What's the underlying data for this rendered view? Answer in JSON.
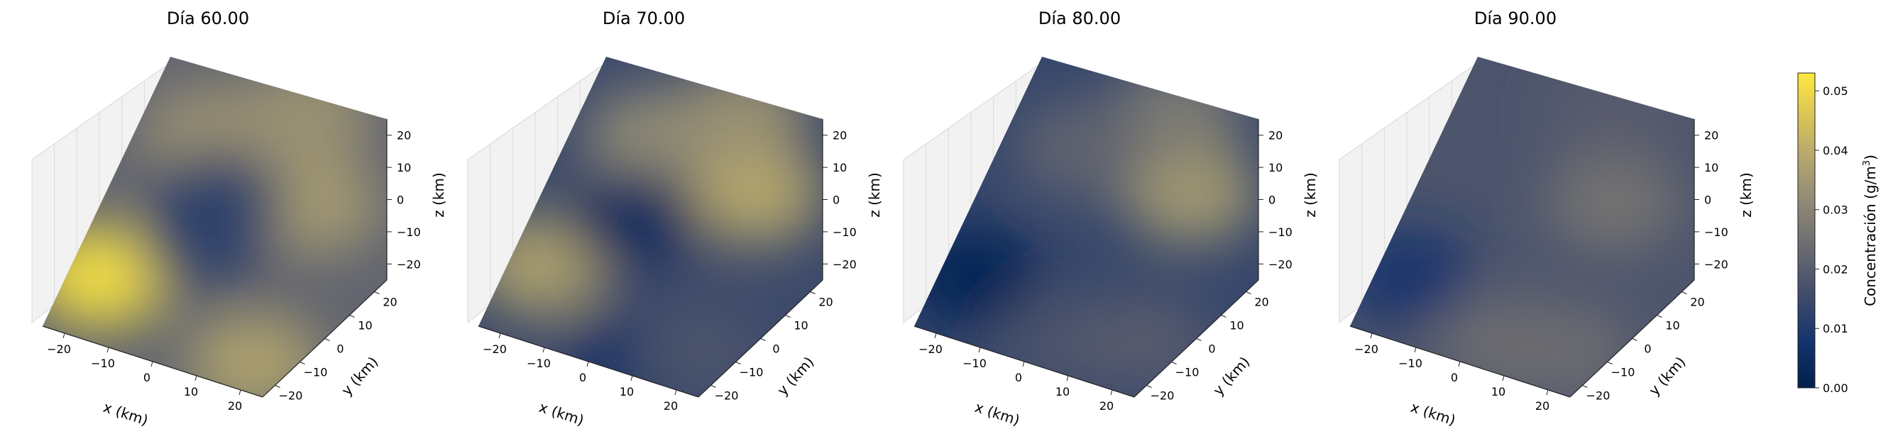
{
  "chart_data": {
    "type": "heatmap",
    "chart_kind": "3d-volume-scatter",
    "colormap": "cividis",
    "panels": [
      {
        "title": "Día 60.00",
        "xlabel": "x (km)",
        "ylabel": "y (km)",
        "zlabel": "z (km)",
        "xticks": [
          "−20",
          "−10",
          "0",
          "10",
          "20"
        ],
        "yticks": [
          "−20",
          "−10",
          "0",
          "10",
          "20"
        ],
        "zticks": [
          "−20",
          "−10",
          "0",
          "10",
          "20"
        ],
        "xlim": [
          -25,
          25
        ],
        "ylim": [
          -25,
          25
        ],
        "zlim": [
          -25,
          25
        ],
        "blobs": [
          {
            "x": -18,
            "y": -14,
            "value": 0.052
          },
          {
            "x": 18,
            "y": 8,
            "value": 0.036
          },
          {
            "x": 8,
            "y": 22,
            "value": 0.034
          },
          {
            "x": -10,
            "y": 14,
            "value": 0.034
          },
          {
            "x": 20,
            "y": -20,
            "value": 0.038
          },
          {
            "x": 0,
            "y": -4,
            "value": 0.014
          },
          {
            "x": -2,
            "y": 4,
            "value": 0.012
          }
        ],
        "background_value": 0.022
      },
      {
        "title": "Día 70.00",
        "xlabel": "x (km)",
        "ylabel": "y (km)",
        "zlabel": "z (km)",
        "xticks": [
          "−20",
          "−10",
          "0",
          "10",
          "20"
        ],
        "yticks": [
          "−20",
          "−10",
          "0",
          "10",
          "20"
        ],
        "zticks": [
          "−20",
          "−10",
          "0",
          "10",
          "20"
        ],
        "xlim": [
          -25,
          25
        ],
        "ylim": [
          -25,
          25
        ],
        "zlim": [
          -25,
          25
        ],
        "blobs": [
          {
            "x": -18,
            "y": -12,
            "value": 0.038
          },
          {
            "x": 18,
            "y": 10,
            "value": 0.04
          },
          {
            "x": 8,
            "y": 22,
            "value": 0.034
          },
          {
            "x": -8,
            "y": 14,
            "value": 0.032
          },
          {
            "x": 8,
            "y": -22,
            "value": 0.006
          },
          {
            "x": -4,
            "y": 0,
            "value": 0.004
          },
          {
            "x": 20,
            "y": -18,
            "value": 0.018
          }
        ],
        "background_value": 0.015
      },
      {
        "title": "Día 80.00",
        "xlabel": "x (km)",
        "ylabel": "y (km)",
        "zlabel": "z (km)",
        "xticks": [
          "−20",
          "−10",
          "0",
          "10",
          "20"
        ],
        "yticks": [
          "−20",
          "−10",
          "0",
          "10",
          "20"
        ],
        "zticks": [
          "−20",
          "−10",
          "0",
          "10",
          "20"
        ],
        "xlim": [
          -25,
          25
        ],
        "ylim": [
          -25,
          25
        ],
        "zlim": [
          -25,
          25
        ],
        "blobs": [
          {
            "x": -18,
            "y": -14,
            "value": 0.002
          },
          {
            "x": 18,
            "y": 10,
            "value": 0.036
          },
          {
            "x": 8,
            "y": 22,
            "value": 0.028
          },
          {
            "x": -8,
            "y": 12,
            "value": 0.022
          },
          {
            "x": 6,
            "y": -20,
            "value": 0.018
          },
          {
            "x": 22,
            "y": -16,
            "value": 0.02
          }
        ],
        "background_value": 0.014
      },
      {
        "title": "Día 90.00",
        "xlabel": "x (km)",
        "ylabel": "y (km)",
        "zlabel": "z (km)",
        "xticks": [
          "−20",
          "−10",
          "0",
          "10",
          "20"
        ],
        "yticks": [
          "−20",
          "−10",
          "0",
          "10",
          "20"
        ],
        "zticks": [
          "−20",
          "−10",
          "0",
          "10",
          "20"
        ],
        "xlim": [
          -25,
          25
        ],
        "ylim": [
          -25,
          25
        ],
        "zlim": [
          -25,
          25
        ],
        "blobs": [
          {
            "x": -18,
            "y": -14,
            "value": 0.008
          },
          {
            "x": 16,
            "y": 8,
            "value": 0.026
          },
          {
            "x": 8,
            "y": 22,
            "value": 0.02
          },
          {
            "x": 6,
            "y": -20,
            "value": 0.024
          },
          {
            "x": 20,
            "y": -18,
            "value": 0.024
          }
        ],
        "background_value": 0.018
      }
    ],
    "colorbar": {
      "label": "Concentración (g/m³)",
      "label_main": "Concentración",
      "label_unit": "(g/m",
      "label_sup": "3",
      "label_close": ")",
      "min": 0.0,
      "max": 0.053,
      "ticks": [
        {
          "value": 0.0,
          "label": "0.00"
        },
        {
          "value": 0.01,
          "label": "0.01"
        },
        {
          "value": 0.02,
          "label": "0.02"
        },
        {
          "value": 0.03,
          "label": "0.03"
        },
        {
          "value": 0.04,
          "label": "0.04"
        },
        {
          "value": 0.05,
          "label": "0.05"
        }
      ]
    }
  }
}
